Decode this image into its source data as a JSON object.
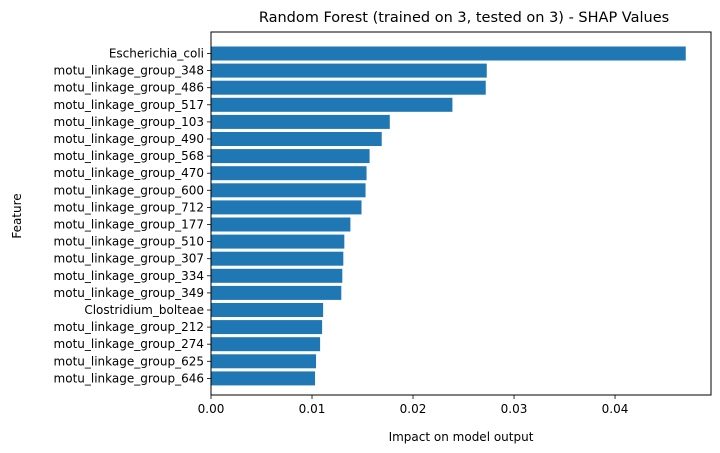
{
  "chart_data": {
    "type": "bar",
    "orientation": "horizontal",
    "title": "Random Forest (trained on 3, tested on 3) -  SHAP Values",
    "xlabel": "Impact on model output",
    "ylabel": "Feature",
    "xlim": [
      0,
      0.0495
    ],
    "xticks": [
      "0.00",
      "0.01",
      "0.02",
      "0.03",
      "0.04"
    ],
    "grid": false,
    "bar_color": "#1f77b4",
    "categories": [
      "Escherichia_coli",
      "motu_linkage_group_348",
      "motu_linkage_group_486",
      "motu_linkage_group_517",
      "motu_linkage_group_103",
      "motu_linkage_group_490",
      "motu_linkage_group_568",
      "motu_linkage_group_470",
      "motu_linkage_group_600",
      "motu_linkage_group_712",
      "motu_linkage_group_177",
      "motu_linkage_group_510",
      "motu_linkage_group_307",
      "motu_linkage_group_334",
      "motu_linkage_group_349",
      "Clostridium_bolteae",
      "motu_linkage_group_212",
      "motu_linkage_group_274",
      "motu_linkage_group_625",
      "motu_linkage_group_646"
    ],
    "values": [
      0.047,
      0.0273,
      0.0272,
      0.0239,
      0.0177,
      0.0169,
      0.0157,
      0.0154,
      0.0153,
      0.0149,
      0.0138,
      0.0132,
      0.0131,
      0.013,
      0.0129,
      0.0111,
      0.011,
      0.0108,
      0.0104,
      0.0103
    ]
  }
}
